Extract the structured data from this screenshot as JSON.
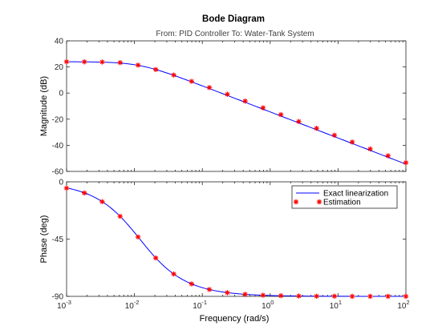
{
  "chart_data": {
    "type": "line",
    "title": "Bode Diagram",
    "subtitle": "From: PID Controller  To: Water-Tank System",
    "xlabel": "Frequency  (rad/s)",
    "x_scale": "log",
    "xlim": [
      0.001,
      100
    ],
    "x_ticks": [
      0.001,
      0.01,
      0.1,
      1,
      10,
      100
    ],
    "x_tick_labels": [
      [
        "10",
        "-3"
      ],
      [
        "10",
        "-2"
      ],
      [
        "10",
        "-1"
      ],
      [
        "10",
        "0"
      ],
      [
        "10",
        "1"
      ],
      [
        "10",
        "2"
      ]
    ],
    "panels": [
      {
        "name": "magnitude",
        "ylabel": "Magnitude (dB)",
        "ylim": [
          -60,
          40
        ],
        "y_ticks": [
          40,
          20,
          0,
          -20,
          -40,
          -60
        ],
        "y_tick_labels": [
          "40",
          "20",
          "0",
          "-20",
          "-40",
          "-60"
        ]
      },
      {
        "name": "phase",
        "ylabel": "Phase (deg)",
        "ylim": [
          -90,
          0
        ],
        "y_ticks": [
          0,
          -45,
          -90
        ],
        "y_tick_labels": [
          "0",
          "-45",
          "-90"
        ]
      }
    ],
    "series": [
      {
        "name": "Exact linearization",
        "style": "line",
        "color": "#0000ff",
        "model": {
          "dc_gain_db": 24,
          "corner_rad_s": 0.012
        }
      },
      {
        "name": "Estimation",
        "style": "marker",
        "marker": "*",
        "color": "#ff0000",
        "x": [
          0.001,
          0.00183,
          0.00335,
          0.00615,
          0.0113,
          0.0206,
          0.0379,
          0.0695,
          0.127,
          0.234,
          0.428,
          0.785,
          1.44,
          2.64,
          4.83,
          8.86,
          16.2,
          29.8,
          54.6,
          100
        ],
        "magnitude_db": [
          24.0,
          23.9,
          23.8,
          23.3,
          21.4,
          18.0,
          13.8,
          9.0,
          4.2,
          -0.9,
          -6.1,
          -11.3,
          -16.5,
          -21.8,
          -27.0,
          -32.3,
          -37.5,
          -42.8,
          -48.0,
          -53.3
        ],
        "phase_deg": [
          -5,
          -8.8,
          -15.6,
          -27.1,
          -43.3,
          -59.8,
          -72.4,
          -80.2,
          -84.6,
          -87.1,
          -88.4,
          -89.1,
          -89.5,
          -89.7,
          -89.9,
          -89.9,
          -90,
          -90,
          -90,
          -90
        ]
      }
    ],
    "legend": {
      "placement": "top-right",
      "panel": "phase"
    },
    "grid": false
  }
}
